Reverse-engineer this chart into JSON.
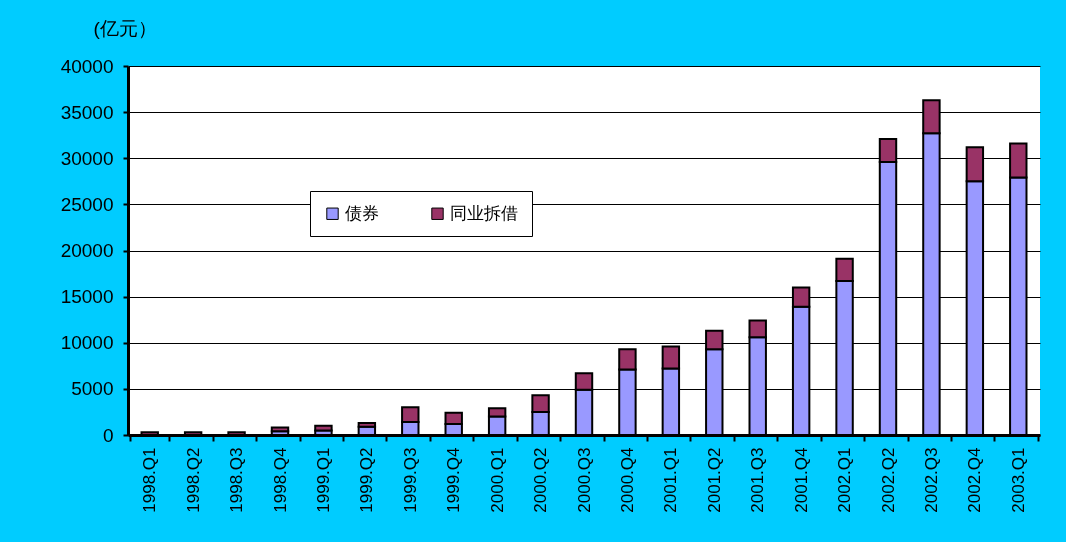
{
  "chart_data": {
    "type": "bar",
    "ylabel": "(亿元）",
    "stacked": true,
    "grid": "y",
    "legend": "top left",
    "categories": [
      "1998.Q1",
      "1998.Q2",
      "1998.Q3",
      "1998.Q4",
      "1999.Q1",
      "1999.Q2",
      "1999.Q3",
      "1999.Q4",
      "2000.Q1",
      "2000.Q2",
      "2000.Q3",
      "2000.Q4",
      "2001.Q1",
      "2001.Q2",
      "2001.Q3",
      "2001.Q4",
      "2002.Q1",
      "2002.Q2",
      "2002.Q3",
      "2002.Q4",
      "2003.Q1"
    ],
    "series": [
      {
        "name": "债券",
        "color": "#9999ff",
        "values": [
          null,
          null,
          null,
          400,
          500,
          900,
          1400,
          1200,
          2000,
          2500,
          4900,
          7100,
          7200,
          9300,
          10600,
          13900,
          16700,
          29600,
          32700,
          27500,
          27900
        ]
      },
      {
        "name": "同业拆借",
        "color": "#993366",
        "values": [
          300,
          300,
          300,
          400,
          500,
          400,
          1600,
          1200,
          900,
          1800,
          1800,
          2200,
          2400,
          2000,
          1800,
          2100,
          2400,
          2500,
          3600,
          3700,
          3700
        ]
      }
    ],
    "ylim": [
      0,
      40000
    ],
    "yticks": [
      0,
      5000,
      10000,
      15000,
      20000,
      25000,
      30000,
      35000,
      40000
    ]
  }
}
